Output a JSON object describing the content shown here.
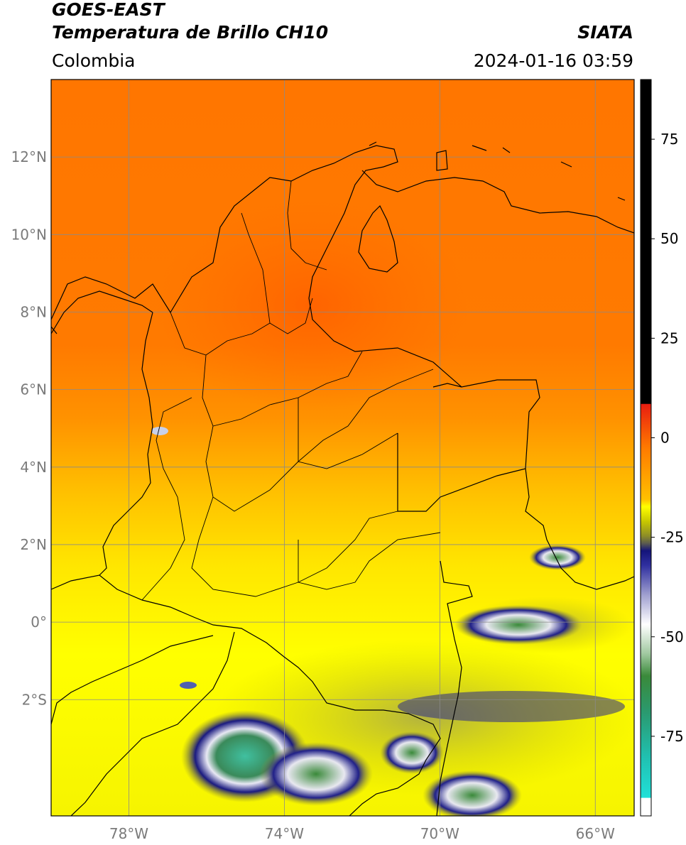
{
  "header": {
    "satellite": "GOES-EAST",
    "product": "Temperatura de Brillo CH10",
    "region": "Colombia",
    "agency": "SIATA",
    "datetime": "2024-01-16 03:59"
  },
  "map": {
    "lon_range": [
      -80,
      -65
    ],
    "lat_range": [
      -5,
      14
    ],
    "lat_ticks": [
      {
        "value": 12,
        "label": "12°N"
      },
      {
        "value": 10,
        "label": "10°N"
      },
      {
        "value": 8,
        "label": "8°N"
      },
      {
        "value": 6,
        "label": "6°N"
      },
      {
        "value": 4,
        "label": "4°N"
      },
      {
        "value": 2,
        "label": "2°N"
      },
      {
        "value": 0,
        "label": "0°"
      },
      {
        "value": -2,
        "label": "2°S"
      }
    ],
    "lon_ticks": [
      {
        "value": -78,
        "label": "78°W"
      },
      {
        "value": -74,
        "label": "74°W"
      },
      {
        "value": -70,
        "label": "70°W"
      },
      {
        "value": -66,
        "label": "66°W"
      }
    ],
    "grid": true
  },
  "colorbar": {
    "range": [
      -95,
      90
    ],
    "ticks": [
      {
        "value": 75,
        "label": "75"
      },
      {
        "value": 50,
        "label": "50"
      },
      {
        "value": 25,
        "label": "25"
      },
      {
        "value": 0,
        "label": "0"
      },
      {
        "value": -25,
        "label": "-25"
      },
      {
        "value": -50,
        "label": "-50"
      },
      {
        "value": -75,
        "label": "-75"
      }
    ],
    "colors": {
      "black": "#000000",
      "red": "#e81d10",
      "orange": "#ff7a00",
      "yellow": "#ffff00",
      "olive": "#8c8c28",
      "navy": "#14147a",
      "white": "#ffffff",
      "green": "#3a8a3a",
      "teal": "#20d0c8"
    }
  }
}
